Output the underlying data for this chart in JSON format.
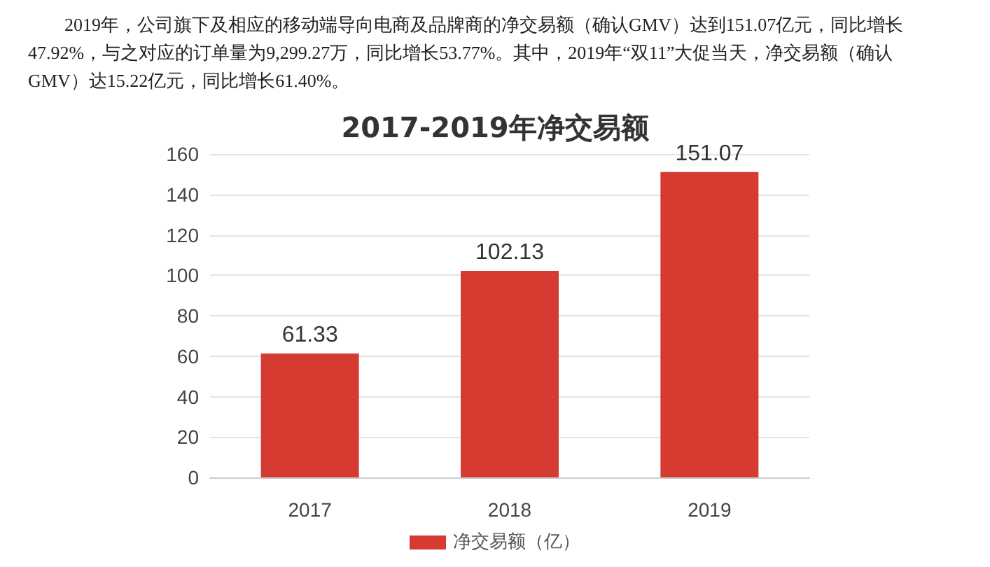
{
  "chart_data": {
    "type": "bar",
    "title": "2017-2019年净交易额",
    "annotations": [
      "2019年，公司旗下及相应的移动端导向电商及品牌商的净交易额（确认GMV）达到151.07亿元，同比增长47.92%，与之对应的订单量为9,299.27万，同比增长53.77%。其中，2019年“双11”大促当天，净交易额（确认GMV）达15.22亿元，同比增长61.40%。"
    ],
    "categories": [
      "2017",
      "2018",
      "2019"
    ],
    "series": [
      {
        "name": "净交易额（亿）",
        "color": "#d63b32",
        "values": [
          61.33,
          102.13,
          151.07
        ]
      }
    ],
    "ylim": [
      0,
      160
    ],
    "yticks": [
      0,
      20,
      40,
      60,
      80,
      100,
      120,
      140,
      160
    ],
    "grid": "y",
    "legend": "bottom",
    "data_labels": true
  }
}
